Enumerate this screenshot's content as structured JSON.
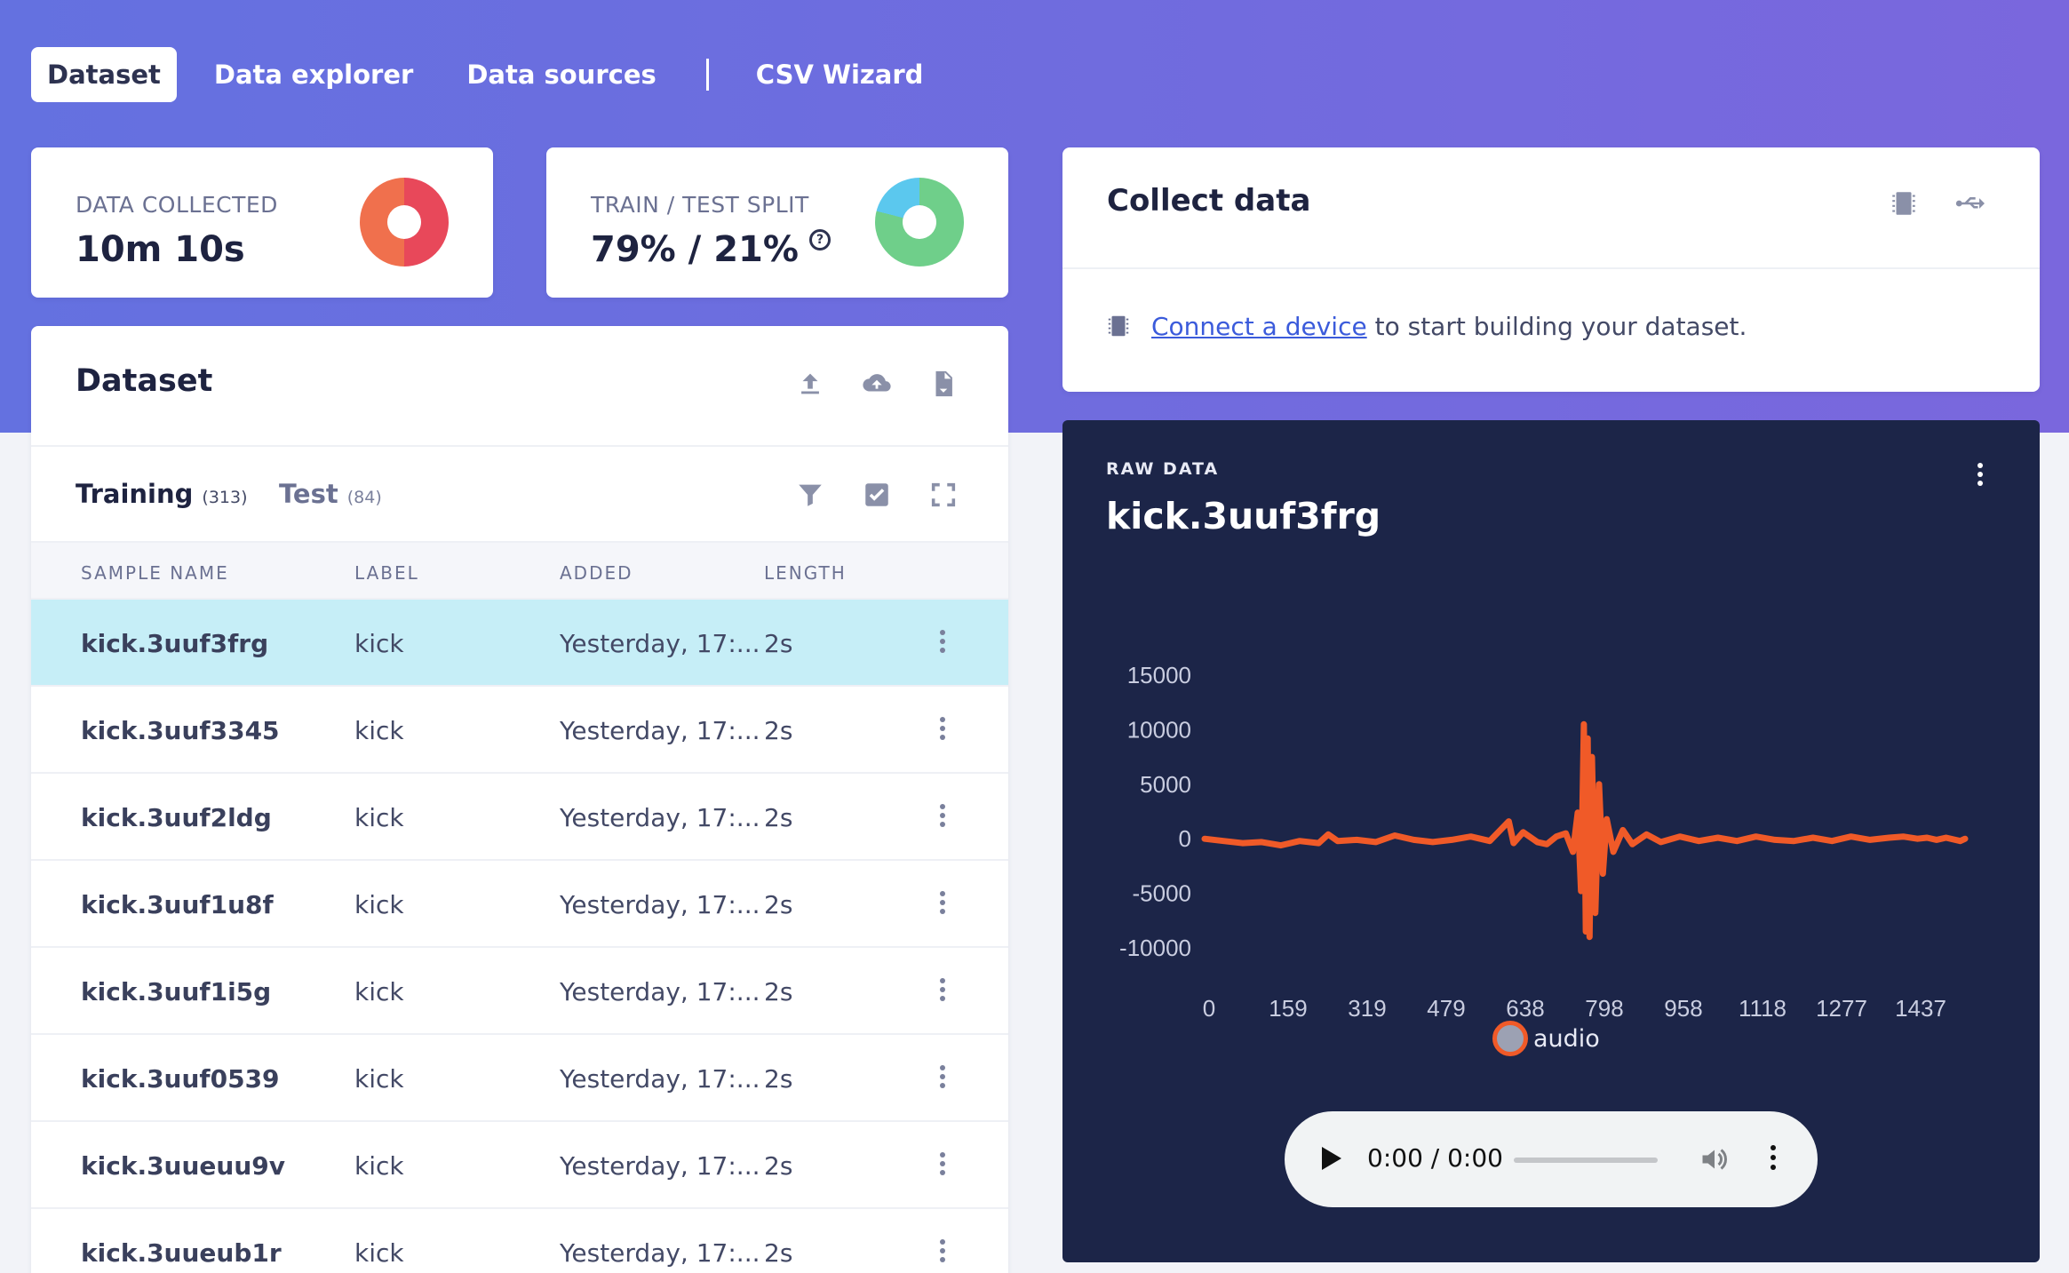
{
  "nav": {
    "tabs": [
      "Dataset",
      "Data explorer",
      "Data sources"
    ],
    "extra": "CSV Wizard",
    "active": "Dataset"
  },
  "stats": {
    "collected_label": "DATA COLLECTED",
    "collected_value": "10m 10s",
    "split_label": "TRAIN / TEST SPLIT",
    "split_value": "79% / 21%",
    "help_glyph": "?"
  },
  "dataset": {
    "title": "Dataset",
    "tab_training": "Training",
    "tab_training_count": "(313)",
    "tab_test": "Test",
    "tab_test_count": "(84)",
    "columns": [
      "SAMPLE NAME",
      "LABEL",
      "ADDED",
      "LENGTH"
    ],
    "rows": [
      {
        "name": "kick.3uuf3frg",
        "label": "kick",
        "added": "Yesterday, 17:...",
        "length": "2s",
        "selected": true
      },
      {
        "name": "kick.3uuf3345",
        "label": "kick",
        "added": "Yesterday, 17:...",
        "length": "2s"
      },
      {
        "name": "kick.3uuf2ldg",
        "label": "kick",
        "added": "Yesterday, 17:...",
        "length": "2s"
      },
      {
        "name": "kick.3uuf1u8f",
        "label": "kick",
        "added": "Yesterday, 17:...",
        "length": "2s"
      },
      {
        "name": "kick.3uuf1i5g",
        "label": "kick",
        "added": "Yesterday, 17:...",
        "length": "2s"
      },
      {
        "name": "kick.3uuf0539",
        "label": "kick",
        "added": "Yesterday, 17:...",
        "length": "2s"
      },
      {
        "name": "kick.3uueuu9v",
        "label": "kick",
        "added": "Yesterday, 17:...",
        "length": "2s"
      },
      {
        "name": "kick.3uueub1r",
        "label": "kick",
        "added": "Yesterday, 17:...",
        "length": "2s"
      }
    ]
  },
  "collect": {
    "title": "Collect data",
    "link_text": "Connect a device",
    "rest_text": " to start building your dataset."
  },
  "raw": {
    "label": "RAW DATA",
    "title": "kick.3uuf3frg"
  },
  "chart_data": {
    "type": "line",
    "series": [
      {
        "name": "audio",
        "color": "#f05a28"
      }
    ],
    "x_ticks": [
      "0",
      "159",
      "319",
      "479",
      "638",
      "798",
      "958",
      "1118",
      "1277",
      "1437"
    ],
    "y_ticks": [
      "15000",
      "10000",
      "5000",
      "0",
      "-5000",
      "-10000"
    ],
    "xlim": [
      0,
      1600
    ],
    "ylim": [
      -10000,
      15000
    ],
    "grid": false,
    "legend": "bottom-center",
    "points": [
      [
        0,
        0
      ],
      [
        40,
        -200
      ],
      [
        80,
        -400
      ],
      [
        120,
        -300
      ],
      [
        160,
        -600
      ],
      [
        200,
        -200
      ],
      [
        240,
        -400
      ],
      [
        260,
        400
      ],
      [
        280,
        -200
      ],
      [
        320,
        -100
      ],
      [
        360,
        -300
      ],
      [
        400,
        300
      ],
      [
        440,
        -100
      ],
      [
        480,
        -300
      ],
      [
        520,
        -100
      ],
      [
        560,
        200
      ],
      [
        600,
        -200
      ],
      [
        640,
        1600
      ],
      [
        650,
        -400
      ],
      [
        670,
        600
      ],
      [
        700,
        -300
      ],
      [
        720,
        -500
      ],
      [
        740,
        200
      ],
      [
        760,
        500
      ],
      [
        775,
        -1200
      ],
      [
        785,
        2400
      ],
      [
        792,
        -4800
      ],
      [
        798,
        10500
      ],
      [
        802,
        -8500
      ],
      [
        806,
        9200
      ],
      [
        810,
        -9000
      ],
      [
        815,
        7500
      ],
      [
        822,
        -6800
      ],
      [
        830,
        5000
      ],
      [
        838,
        -3200
      ],
      [
        846,
        1800
      ],
      [
        860,
        -1200
      ],
      [
        880,
        800
      ],
      [
        900,
        -500
      ],
      [
        930,
        400
      ],
      [
        960,
        -300
      ],
      [
        1000,
        200
      ],
      [
        1040,
        -200
      ],
      [
        1080,
        100
      ],
      [
        1120,
        -200
      ],
      [
        1160,
        200
      ],
      [
        1200,
        -100
      ],
      [
        1240,
        -200
      ],
      [
        1280,
        100
      ],
      [
        1320,
        -200
      ],
      [
        1360,
        200
      ],
      [
        1400,
        -100
      ],
      [
        1440,
        100
      ],
      [
        1470,
        200
      ],
      [
        1500,
        0
      ],
      [
        1520,
        100
      ],
      [
        1540,
        -100
      ],
      [
        1560,
        100
      ],
      [
        1590,
        -200
      ],
      [
        1600,
        0
      ]
    ]
  },
  "player": {
    "time": "0:00 / 0:00"
  },
  "colors": {
    "accent": "#6471e0",
    "selected_row": "#c6eef7",
    "donut_red": "#e8485a",
    "donut_orange": "#f0704d",
    "donut_green": "#6fcf8a",
    "donut_blue": "#5bc8ee",
    "series": "#f05a28"
  }
}
